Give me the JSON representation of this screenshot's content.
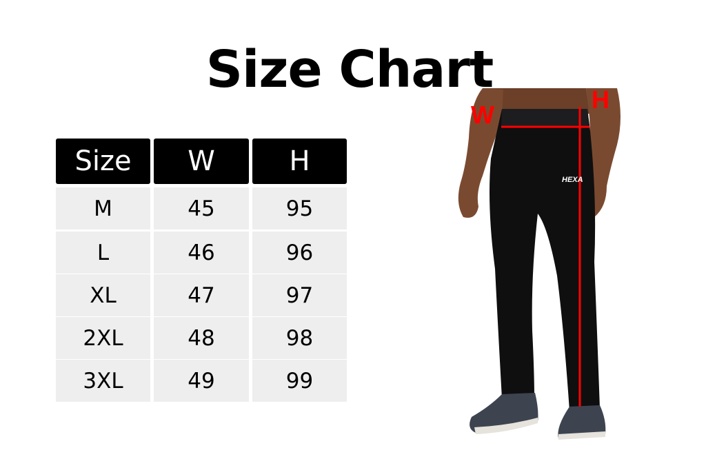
{
  "title": "Size Chart",
  "table": {
    "headers": [
      "Size",
      "W",
      "H"
    ],
    "rows": [
      [
        "M",
        "45",
        "95"
      ],
      [
        "L",
        "46",
        "96"
      ],
      [
        "XL",
        "47",
        "97"
      ],
      [
        "2XL",
        "48",
        "98"
      ],
      [
        "3XL",
        "49",
        "99"
      ]
    ]
  },
  "figure": {
    "waist_label": "W",
    "length_label": "H",
    "logo_text": "HEXA",
    "measure_color": "#ff0000"
  }
}
